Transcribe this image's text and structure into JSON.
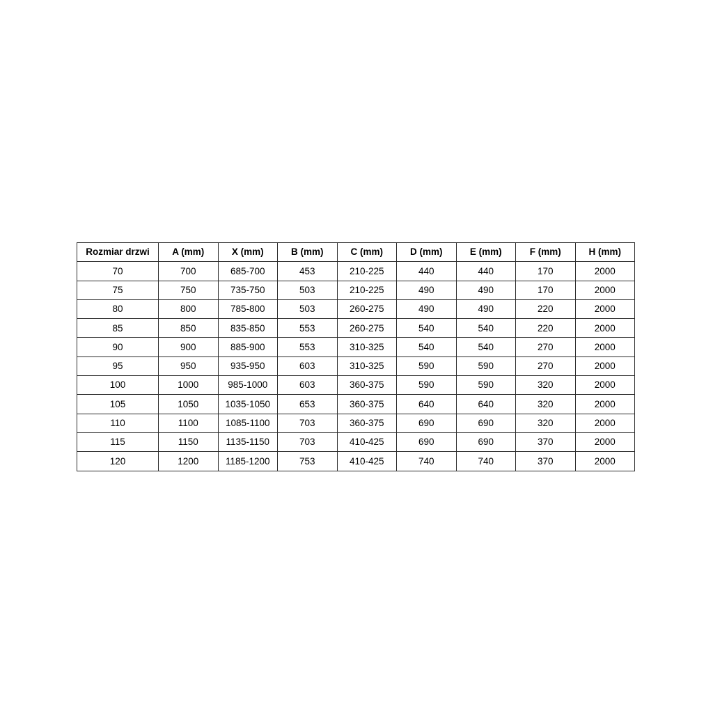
{
  "page": {
    "background": "#ffffff",
    "table_border_color": "#2b2b2b",
    "table_text_color": "#000000"
  },
  "table": {
    "headers": [
      "Rozmiar drzwi",
      "A (mm)",
      "X (mm)",
      "B (mm)",
      "C (mm)",
      "D (mm)",
      "E (mm)",
      "F (mm)",
      "H (mm)"
    ],
    "rows": [
      [
        "70",
        "700",
        "685-700",
        "453",
        "210-225",
        "440",
        "440",
        "170",
        "2000"
      ],
      [
        "75",
        "750",
        "735-750",
        "503",
        "210-225",
        "490",
        "490",
        "170",
        "2000"
      ],
      [
        "80",
        "800",
        "785-800",
        "503",
        "260-275",
        "490",
        "490",
        "220",
        "2000"
      ],
      [
        "85",
        "850",
        "835-850",
        "553",
        "260-275",
        "540",
        "540",
        "220",
        "2000"
      ],
      [
        "90",
        "900",
        "885-900",
        "553",
        "310-325",
        "540",
        "540",
        "270",
        "2000"
      ],
      [
        "95",
        "950",
        "935-950",
        "603",
        "310-325",
        "590",
        "590",
        "270",
        "2000"
      ],
      [
        "100",
        "1000",
        "985-1000",
        "603",
        "360-375",
        "590",
        "590",
        "320",
        "2000"
      ],
      [
        "105",
        "1050",
        "1035-1050",
        "653",
        "360-375",
        "640",
        "640",
        "320",
        "2000"
      ],
      [
        "110",
        "1100",
        "1085-1100",
        "703",
        "360-375",
        "690",
        "690",
        "320",
        "2000"
      ],
      [
        "115",
        "1150",
        "1135-1150",
        "703",
        "410-425",
        "690",
        "690",
        "370",
        "2000"
      ],
      [
        "120",
        "1200",
        "1185-1200",
        "753",
        "410-425",
        "740",
        "740",
        "370",
        "2000"
      ]
    ]
  },
  "chart_data": {
    "type": "table",
    "title": "",
    "columns": [
      "Rozmiar drzwi",
      "A (mm)",
      "X (mm)",
      "B (mm)",
      "C (mm)",
      "D (mm)",
      "E (mm)",
      "F (mm)",
      "H (mm)"
    ],
    "rows": [
      [
        "70",
        "700",
        "685-700",
        "453",
        "210-225",
        "440",
        "440",
        "170",
        "2000"
      ],
      [
        "75",
        "750",
        "735-750",
        "503",
        "210-225",
        "490",
        "490",
        "170",
        "2000"
      ],
      [
        "80",
        "800",
        "785-800",
        "503",
        "260-275",
        "490",
        "490",
        "220",
        "2000"
      ],
      [
        "85",
        "850",
        "835-850",
        "553",
        "260-275",
        "540",
        "540",
        "220",
        "2000"
      ],
      [
        "90",
        "900",
        "885-900",
        "553",
        "310-325",
        "540",
        "540",
        "270",
        "2000"
      ],
      [
        "95",
        "950",
        "935-950",
        "603",
        "310-325",
        "590",
        "590",
        "270",
        "2000"
      ],
      [
        "100",
        "1000",
        "985-1000",
        "603",
        "360-375",
        "590",
        "590",
        "320",
        "2000"
      ],
      [
        "105",
        "1050",
        "1035-1050",
        "653",
        "360-375",
        "640",
        "640",
        "320",
        "2000"
      ],
      [
        "110",
        "1100",
        "1085-1100",
        "703",
        "360-375",
        "690",
        "690",
        "320",
        "2000"
      ],
      [
        "115",
        "1150",
        "1135-1150",
        "703",
        "410-425",
        "690",
        "690",
        "370",
        "2000"
      ],
      [
        "120",
        "1200",
        "1185-1200",
        "753",
        "410-425",
        "740",
        "740",
        "370",
        "2000"
      ]
    ]
  }
}
